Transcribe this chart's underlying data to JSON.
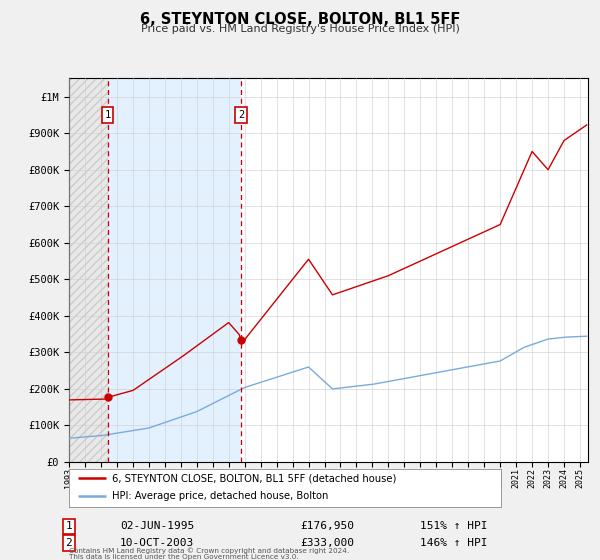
{
  "title": "6, STEYNTON CLOSE, BOLTON, BL1 5FF",
  "subtitle": "Price paid vs. HM Land Registry's House Price Index (HPI)",
  "legend_line1": "6, STEYNTON CLOSE, BOLTON, BL1 5FF (detached house)",
  "legend_line2": "HPI: Average price, detached house, Bolton",
  "footer1": "Contains HM Land Registry data © Crown copyright and database right 2024.",
  "footer2": "This data is licensed under the Open Government Licence v3.0.",
  "sale1_year": 1995.42,
  "sale1_value": 176950,
  "sale2_year": 2003.77,
  "sale2_value": 333000,
  "hpi_color": "#7aaadd",
  "price_color": "#cc0000",
  "vline_color": "#cc0000",
  "background_color": "#f0f0f0",
  "plot_bg_color": "#ffffff",
  "hatch_color": "#cccccc",
  "span_color": "#ddeeff",
  "ylim_max": 1050000,
  "ylim_min": 0,
  "xmin": 1993,
  "xmax": 2025.5,
  "yticks": [
    0,
    100000,
    200000,
    300000,
    400000,
    500000,
    600000,
    700000,
    800000,
    900000,
    1000000
  ],
  "ytick_labels": [
    "£0",
    "£100K",
    "£200K",
    "£300K",
    "£400K",
    "£500K",
    "£600K",
    "£700K",
    "£800K",
    "£900K",
    "£1M"
  ]
}
